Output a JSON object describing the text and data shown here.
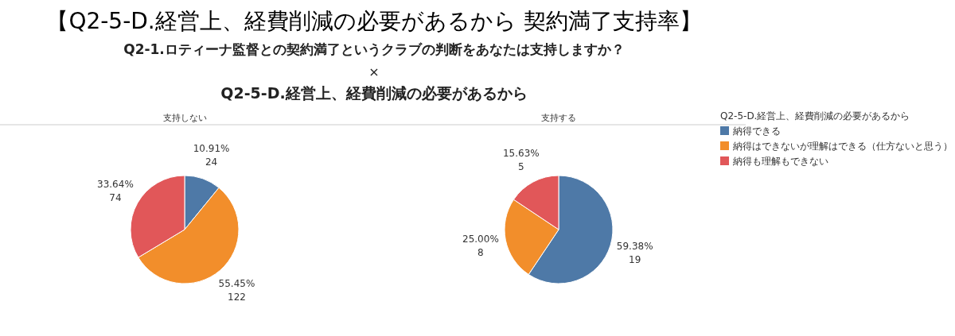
{
  "chart_data": [
    {
      "type": "other",
      "title": "【Q2-5-D.経営上、経費削減の必要があるから  契約満了支持率】",
      "annotations": [
        "Q2-1.ロティーナ監督との契約満了というクラブの判断をあなたは支持しますか？",
        "×",
        "Q2-5-D.経営上、経費削減の必要があるから"
      ]
    },
    {
      "type": "pie",
      "title": "支持しない",
      "values": [
        24,
        122,
        74
      ],
      "colors": [
        "#4e79a7",
        "#f28e2b",
        "#e15759"
      ],
      "value_labels": [
        "10.91%\n24",
        "55.45%\n122",
        "33.64%\n74"
      ],
      "legend": false
    },
    {
      "type": "pie",
      "title": "支持する",
      "categories": [
        "納得できる",
        "納得はできないが理解はできる（仕方ないと思う）",
        "納得も理解もできない"
      ],
      "values": [
        19,
        8,
        5
      ],
      "colors": [
        "#4e79a7",
        "#f28e2b",
        "#e15759"
      ],
      "value_labels": [
        "59.38%\n19",
        "25.00%\n8",
        "15.63%\n5"
      ],
      "legend": "right",
      "legend_title": "Q2-5-D.経営上、経費削減の必要があるから"
    }
  ]
}
